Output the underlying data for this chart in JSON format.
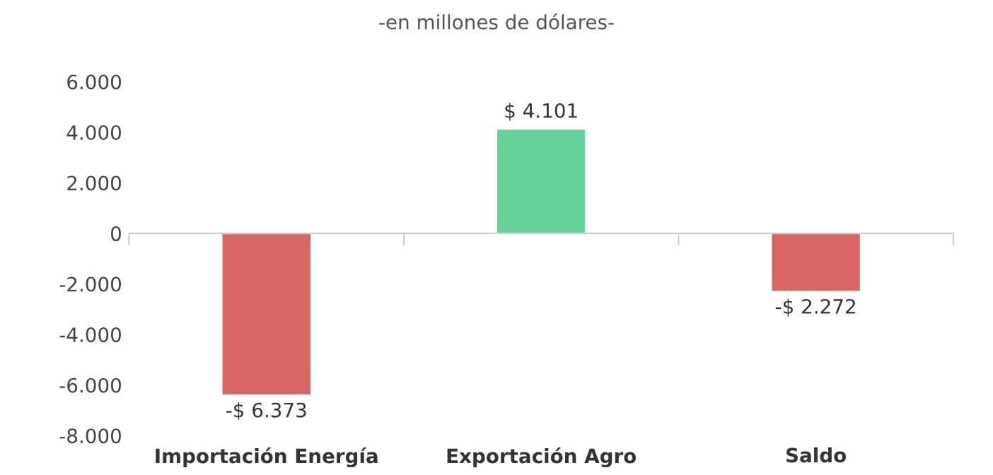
{
  "chart_data": {
    "type": "bar",
    "subtitle": "-en millones de dólares-",
    "categories": [
      "Importación Energía",
      "Exportación Agro",
      "Saldo"
    ],
    "values": [
      -6373,
      4101,
      -2272
    ],
    "colors": [
      "#d96464",
      "#66d39a",
      "#d96464"
    ],
    "value_labels": [
      "-$ 6.373",
      "$ 4.101",
      "-$ 2.272"
    ],
    "ylim": [
      -8000,
      6000
    ],
    "yticks": [
      {
        "value": -8000,
        "label": "-8.000"
      },
      {
        "value": -6000,
        "label": "-6.000"
      },
      {
        "value": -4000,
        "label": "-4.000"
      },
      {
        "value": -2000,
        "label": "-2.000"
      },
      0,
      {
        "value": 2000,
        "label": "2.000"
      },
      {
        "value": 4000,
        "label": "4.000"
      },
      {
        "value": 6000,
        "label": "6.000"
      }
    ],
    "legend": false
  }
}
